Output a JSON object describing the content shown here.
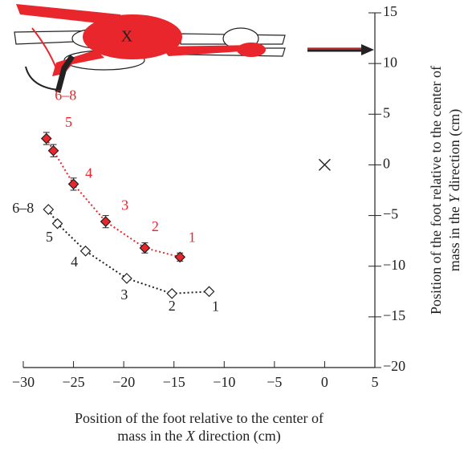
{
  "chart_data": {
    "type": "scatter",
    "illustration_label": "X",
    "xlabel": [
      "Position of the foot relative to the center of",
      "mass in the ",
      "X",
      " direction (cm)"
    ],
    "ylabel": [
      "Position of the foot relative to the center of",
      "mass in the ",
      "Y",
      " direction (cm)"
    ],
    "xlim": [
      -30,
      5
    ],
    "ylim": [
      -20,
      15
    ],
    "xticks": [
      {
        "value": -30,
        "label": "−30"
      },
      {
        "value": -25,
        "label": "−25"
      },
      {
        "value": -20,
        "label": "−20"
      },
      {
        "value": -15,
        "label": "−15"
      },
      {
        "value": -10,
        "label": "−10"
      },
      {
        "value": -5,
        "label": "−5"
      },
      0,
      5
    ],
    "yticks": [
      {
        "value": -20,
        "label": "−20"
      },
      {
        "value": -15,
        "label": "−15"
      },
      {
        "value": -10,
        "label": "−10"
      },
      {
        "value": -5,
        "label": "−5"
      },
      0,
      5,
      10,
      15
    ],
    "center_of_mass": {
      "x": 0,
      "y": 0
    },
    "series": [
      {
        "color": "#e8262b",
        "marker": "filled",
        "point_labels": [
          "1",
          "2",
          "3",
          "4",
          "5",
          "6–8"
        ],
        "x": [
          -14.4,
          -17.9,
          -21.8,
          -25.0,
          -27.0,
          -27.7
        ],
        "y": [
          -9.1,
          -8.2,
          -5.6,
          -1.9,
          1.4,
          2.6
        ],
        "errors": [
          0.4,
          0.5,
          0.6,
          0.6,
          0.6,
          0.6
        ]
      },
      {
        "color": "#222222",
        "marker": "open",
        "point_labels": [
          "1",
          "2",
          "3",
          "4",
          "5",
          "6–8"
        ],
        "x": [
          -11.5,
          -15.2,
          -19.7,
          -23.8,
          -26.6,
          -27.5
        ],
        "y": [
          -12.5,
          -12.7,
          -11.2,
          -8.5,
          -5.8,
          -4.4
        ]
      }
    ]
  }
}
